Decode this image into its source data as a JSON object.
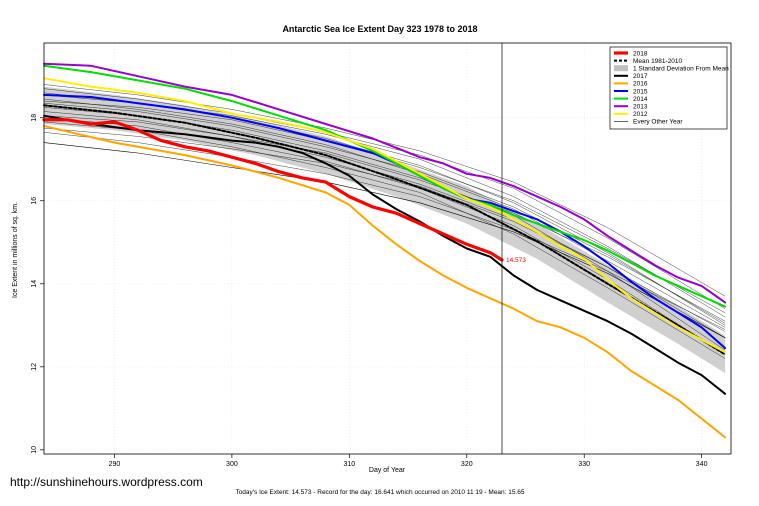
{
  "chart_data": {
    "type": "line",
    "title": "Antarctic Sea Ice Extent Day 323 1978 to 2018",
    "xlabel": "Day of Year",
    "ylabel": "Ice Extent in millions of sq. km.",
    "xlim": [
      284,
      342.5
    ],
    "ylim": [
      9.9,
      19.8
    ],
    "x_ticks": [
      290,
      300,
      310,
      320,
      330,
      340
    ],
    "y_ticks": [
      10,
      12,
      14,
      16,
      18
    ],
    "vline_day": 323,
    "grid": true,
    "legend_position": "top-right",
    "annotation": {
      "text": "14.573",
      "x": 323,
      "y": 14.573
    },
    "mean_band": {
      "x": [
        284,
        290,
        296,
        302,
        308,
        314,
        320,
        326,
        332,
        338,
        342
      ],
      "upper": [
        18.75,
        18.55,
        18.3,
        17.95,
        17.55,
        16.95,
        16.35,
        15.45,
        14.45,
        13.45,
        12.75
      ],
      "lower": [
        17.85,
        17.7,
        17.45,
        17.1,
        16.65,
        16.1,
        15.45,
        14.6,
        13.55,
        12.55,
        11.85
      ]
    },
    "series": [
      {
        "name": "2018",
        "color": "#ff0000",
        "width": 3.2,
        "dash": "",
        "x": [
          284,
          286,
          288,
          290,
          292,
          294,
          296,
          298,
          300,
          302,
          304,
          306,
          308,
          310,
          312,
          314,
          316,
          318,
          320,
          322,
          323
        ],
        "y": [
          17.95,
          17.95,
          17.85,
          17.9,
          17.7,
          17.45,
          17.3,
          17.2,
          17.05,
          16.9,
          16.7,
          16.55,
          16.45,
          16.1,
          15.85,
          15.7,
          15.45,
          15.2,
          14.95,
          14.75,
          14.573
        ]
      },
      {
        "name": "Mean 1981-2010",
        "color": "#000000",
        "width": 2,
        "dash": "3,2",
        "x": [
          284,
          290,
          296,
          302,
          308,
          314,
          320,
          326,
          332,
          338,
          342
        ],
        "y": [
          18.3,
          18.12,
          17.88,
          17.52,
          17.1,
          16.52,
          15.9,
          15.02,
          14.0,
          13.0,
          12.3
        ]
      },
      {
        "name": "2017",
        "color": "#000000",
        "width": 2,
        "dash": "",
        "x": [
          284,
          288,
          292,
          296,
          300,
          302,
          304,
          306,
          308,
          310,
          312,
          314,
          316,
          318,
          320,
          322,
          324,
          326,
          328,
          330,
          332,
          334,
          336,
          338,
          340,
          342
        ],
        "y": [
          18.05,
          17.85,
          17.7,
          17.6,
          17.45,
          17.4,
          17.3,
          17.15,
          16.9,
          16.6,
          16.15,
          15.8,
          15.5,
          15.15,
          14.85,
          14.65,
          14.2,
          13.85,
          13.6,
          13.35,
          13.1,
          12.8,
          12.45,
          12.1,
          11.8,
          11.35
        ]
      },
      {
        "name": "2016",
        "color": "#ffa500",
        "width": 2,
        "dash": "",
        "x": [
          284,
          290,
          296,
          300,
          304,
          308,
          310,
          312,
          314,
          316,
          318,
          320,
          322,
          324,
          326,
          328,
          330,
          332,
          334,
          336,
          338,
          340,
          342
        ],
        "y": [
          17.8,
          17.4,
          17.1,
          16.85,
          16.55,
          16.2,
          15.9,
          15.4,
          14.95,
          14.55,
          14.2,
          13.9,
          13.65,
          13.4,
          13.1,
          12.95,
          12.7,
          12.35,
          11.9,
          11.55,
          11.2,
          10.75,
          10.3
        ]
      },
      {
        "name": "2015",
        "color": "#0000ff",
        "width": 2,
        "dash": "",
        "x": [
          284,
          288,
          292,
          296,
          300,
          304,
          308,
          312,
          314,
          316,
          318,
          320,
          322,
          324,
          326,
          328,
          330,
          332,
          334,
          336,
          338,
          340,
          342
        ],
        "y": [
          18.55,
          18.5,
          18.35,
          18.2,
          18.0,
          17.75,
          17.45,
          17.15,
          16.9,
          16.6,
          16.3,
          16.05,
          15.95,
          15.75,
          15.55,
          15.25,
          14.9,
          14.5,
          14.05,
          13.65,
          13.3,
          12.95,
          12.45
        ]
      },
      {
        "name": "2014",
        "color": "#00dd00",
        "width": 2,
        "dash": "",
        "x": [
          284,
          288,
          292,
          296,
          300,
          304,
          308,
          312,
          314,
          316,
          318,
          320,
          322,
          324,
          326,
          328,
          330,
          332,
          334,
          336,
          338,
          340,
          342
        ],
        "y": [
          19.25,
          19.1,
          18.9,
          18.7,
          18.4,
          18.05,
          17.7,
          17.2,
          16.9,
          16.6,
          16.3,
          16.05,
          15.9,
          15.65,
          15.45,
          15.25,
          15.05,
          14.8,
          14.5,
          14.2,
          13.95,
          13.7,
          13.45
        ]
      },
      {
        "name": "2013",
        "color": "#9900cc",
        "width": 2,
        "dash": "",
        "x": [
          284,
          288,
          292,
          296,
          300,
          304,
          308,
          312,
          316,
          318,
          320,
          322,
          324,
          326,
          328,
          330,
          332,
          334,
          336,
          338,
          340,
          342
        ],
        "y": [
          19.3,
          19.25,
          19.0,
          18.75,
          18.55,
          18.2,
          17.85,
          17.5,
          17.05,
          16.9,
          16.65,
          16.55,
          16.35,
          16.1,
          15.85,
          15.55,
          15.15,
          14.8,
          14.45,
          14.15,
          13.95,
          13.55
        ]
      },
      {
        "name": "2012",
        "color": "#ffee00",
        "width": 2,
        "dash": "",
        "x": [
          284,
          288,
          292,
          296,
          300,
          304,
          308,
          312,
          314,
          316,
          318,
          320,
          322,
          324,
          326,
          328,
          330,
          332,
          334,
          336,
          338,
          340,
          342
        ],
        "y": [
          18.95,
          18.75,
          18.6,
          18.4,
          18.1,
          17.9,
          17.65,
          17.25,
          16.95,
          16.65,
          16.35,
          16.05,
          15.85,
          15.55,
          15.25,
          14.9,
          14.6,
          14.1,
          13.65,
          13.3,
          12.95,
          12.65,
          12.35
        ]
      },
      {
        "name": "Every Other Year",
        "color": "#000000",
        "width": 0.6,
        "dash": "",
        "x": [
          284,
          292,
          300,
          308,
          316,
          324,
          332,
          342
        ],
        "y": [
          17.4,
          17.15,
          16.8,
          16.45,
          15.95,
          15.25,
          14.25,
          12.7
        ]
      }
    ],
    "background_years": [
      {
        "x": [
          284,
          292,
          300,
          308,
          316,
          324,
          332,
          342
        ],
        "y": [
          17.65,
          17.4,
          17.05,
          16.65,
          16.1,
          15.3,
          14.3,
          12.9
        ]
      },
      {
        "x": [
          284,
          292,
          300,
          308,
          316,
          324,
          332,
          342
        ],
        "y": [
          18.55,
          18.35,
          18.05,
          17.6,
          17.0,
          16.1,
          14.9,
          13.2
        ]
      },
      {
        "x": [
          284,
          292,
          300,
          308,
          316,
          324,
          332,
          342
        ],
        "y": [
          18.15,
          17.95,
          17.55,
          17.05,
          16.4,
          15.55,
          14.4,
          12.7
        ]
      },
      {
        "x": [
          284,
          292,
          300,
          308,
          316,
          324,
          332,
          342
        ],
        "y": [
          18.45,
          18.2,
          17.85,
          17.35,
          16.65,
          15.8,
          14.55,
          12.95
        ]
      },
      {
        "x": [
          284,
          292,
          300,
          308,
          316,
          324,
          332,
          342
        ],
        "y": [
          17.9,
          17.7,
          17.3,
          16.8,
          16.2,
          15.2,
          13.9,
          12.2
        ]
      },
      {
        "x": [
          284,
          292,
          300,
          308,
          316,
          324,
          332,
          342
        ],
        "y": [
          18.7,
          18.45,
          18.1,
          17.65,
          17.1,
          16.3,
          15.1,
          13.4
        ]
      },
      {
        "x": [
          284,
          292,
          300,
          308,
          316,
          324,
          332,
          342
        ],
        "y": [
          18.25,
          18.05,
          17.7,
          17.2,
          16.55,
          15.65,
          14.3,
          12.4
        ]
      },
      {
        "x": [
          284,
          292,
          300,
          308,
          316,
          324,
          332,
          342
        ],
        "y": [
          18.05,
          17.9,
          17.55,
          17.15,
          16.5,
          15.7,
          14.65,
          13.1
        ]
      },
      {
        "x": [
          284,
          292,
          300,
          308,
          316,
          324,
          332,
          342
        ],
        "y": [
          18.6,
          18.35,
          18.0,
          17.5,
          16.85,
          15.95,
          14.75,
          13.0
        ]
      },
      {
        "x": [
          284,
          292,
          300,
          308,
          316,
          324,
          332,
          342
        ],
        "y": [
          17.75,
          17.55,
          17.25,
          16.9,
          16.35,
          15.5,
          14.4,
          12.85
        ]
      },
      {
        "x": [
          284,
          292,
          300,
          308,
          316,
          324,
          332,
          342
        ],
        "y": [
          18.35,
          18.15,
          17.8,
          17.3,
          16.7,
          15.85,
          14.7,
          13.05
        ]
      },
      {
        "x": [
          284,
          292,
          300,
          308,
          316,
          324,
          332,
          342
        ],
        "y": [
          18.8,
          18.55,
          18.2,
          17.75,
          17.2,
          16.45,
          15.35,
          13.7
        ]
      },
      {
        "x": [
          284,
          292,
          300,
          308,
          316,
          324,
          332,
          342
        ],
        "y": [
          18.0,
          17.8,
          17.4,
          16.95,
          16.3,
          15.4,
          14.1,
          12.3
        ]
      },
      {
        "x": [
          284,
          292,
          300,
          308,
          316,
          324,
          332,
          342
        ],
        "y": [
          18.4,
          18.25,
          17.95,
          17.45,
          16.8,
          16.0,
          14.85,
          13.3
        ]
      }
    ]
  },
  "legend": {
    "items": [
      {
        "label": "2018",
        "color": "#ff0000",
        "width": 3.2,
        "dash": "",
        "kind": "line"
      },
      {
        "label": "Mean 1981-2010",
        "color": "#000000",
        "width": 2,
        "dash": "3,2",
        "kind": "line"
      },
      {
        "label": "1 Standard Deviation From Mean",
        "color": "#c0c0c0",
        "width": 0,
        "dash": "",
        "kind": "box"
      },
      {
        "label": "2017",
        "color": "#000000",
        "width": 2,
        "dash": "",
        "kind": "line"
      },
      {
        "label": "2016",
        "color": "#ffa500",
        "width": 2,
        "dash": "",
        "kind": "line"
      },
      {
        "label": "2015",
        "color": "#0000ff",
        "width": 2,
        "dash": "",
        "kind": "line"
      },
      {
        "label": "2014",
        "color": "#00dd00",
        "width": 2,
        "dash": "",
        "kind": "line"
      },
      {
        "label": "2013",
        "color": "#9900cc",
        "width": 2,
        "dash": "",
        "kind": "line"
      },
      {
        "label": "2012",
        "color": "#ffee00",
        "width": 2,
        "dash": "",
        "kind": "line"
      },
      {
        "label": "Every Other Year",
        "color": "#000000",
        "width": 0.6,
        "dash": "",
        "kind": "line"
      }
    ]
  },
  "footer": {
    "summary": "Today's Ice Extent: 14.573  - Record for the day: 16.641 which occurred on 2010 11 19  - Mean: 15.65"
  },
  "watermark": {
    "text": "http://sunshinehours.wordpress.com"
  }
}
